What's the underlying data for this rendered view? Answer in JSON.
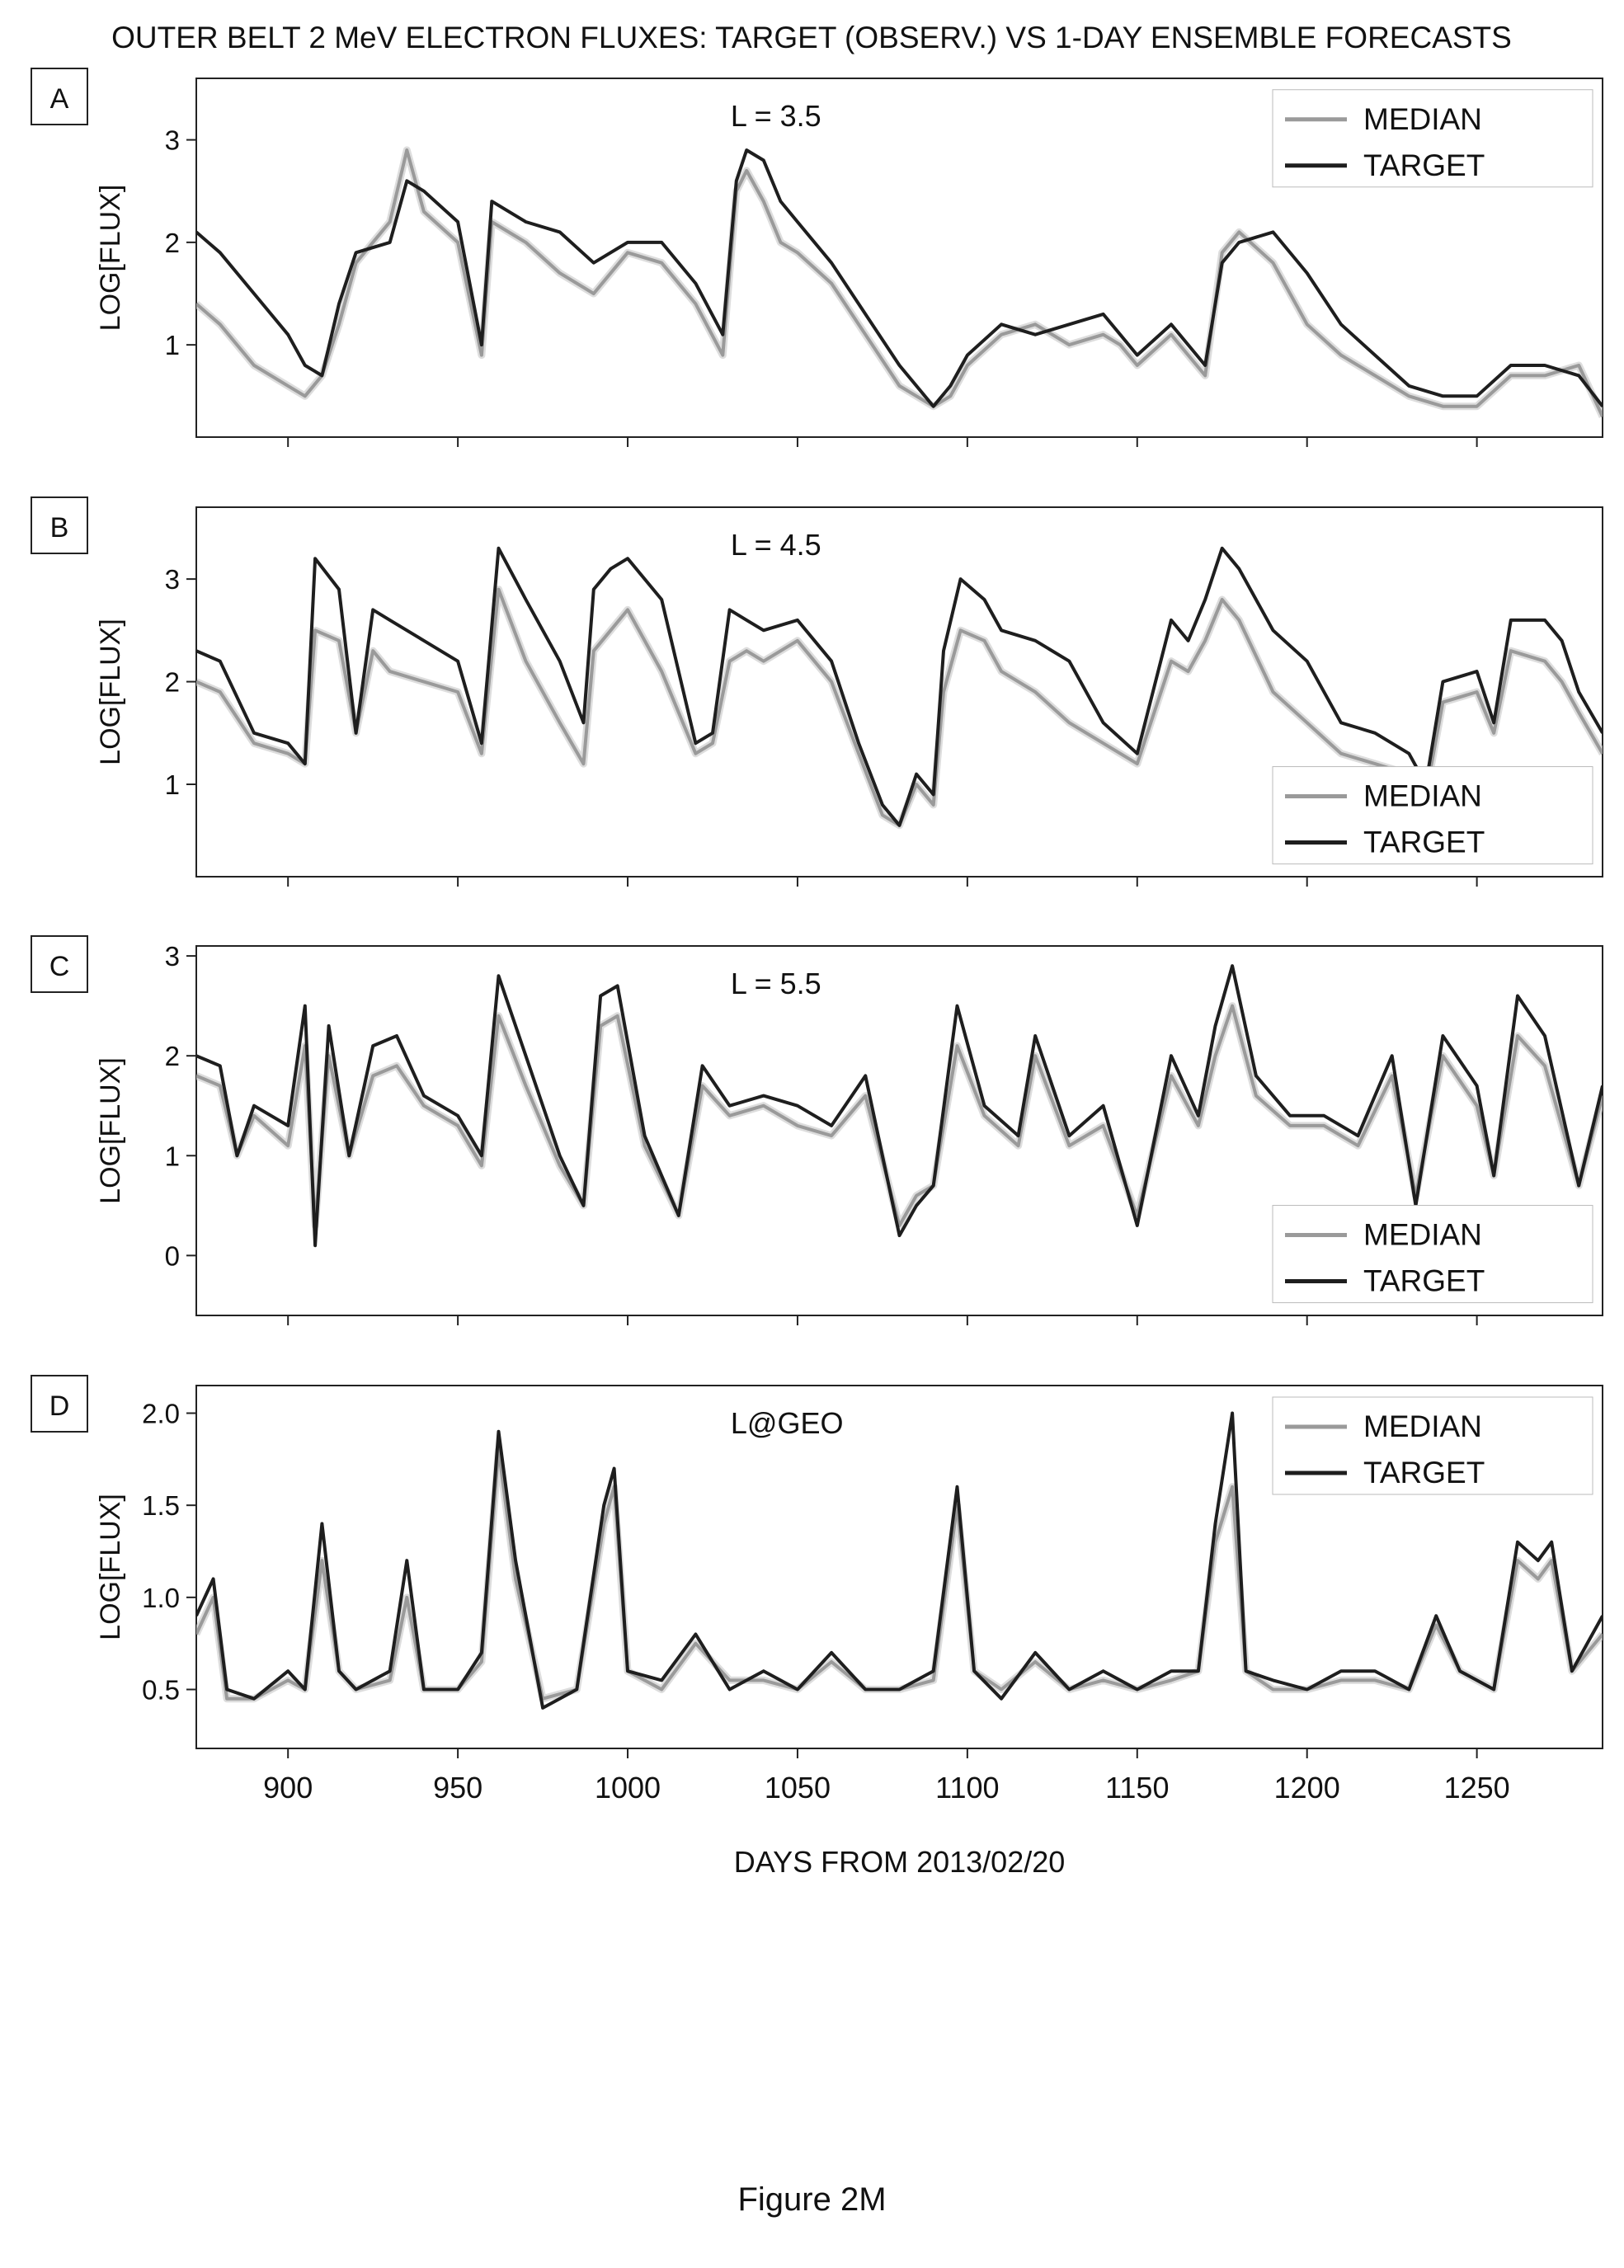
{
  "figure": {
    "title": "OUTER BELT 2 MeV ELECTRON FLUXES: TARGET (OBSERV.) VS 1-DAY ENSEMBLE FORECASTS",
    "caption": "Figure 2M",
    "colors": {
      "median": "#9a9a9a",
      "target": "#1e1e1e",
      "spread": "#cfcfcf",
      "axis": "#222222"
    }
  },
  "chart_data": [
    {
      "type": "line",
      "panel": "A",
      "annotation": "L = 3.5",
      "ylabel": "LOG[FLUX]",
      "xlabel": "",
      "xlim": [
        873,
        1287
      ],
      "ylim": [
        0.1,
        3.6
      ],
      "yticks": [
        1,
        2,
        3
      ],
      "ytick_labels": [
        "1",
        "2",
        "3"
      ],
      "xticks": [
        900,
        950,
        1000,
        1050,
        1100,
        1150,
        1200,
        1250
      ],
      "xtick_labels": [],
      "legend": {
        "position": "top-right",
        "entries": [
          "MEDIAN",
          "TARGET"
        ]
      },
      "x": [
        873,
        880,
        890,
        900,
        905,
        910,
        915,
        920,
        930,
        935,
        940,
        950,
        957,
        960,
        970,
        980,
        990,
        1000,
        1010,
        1020,
        1028,
        1032,
        1035,
        1040,
        1045,
        1050,
        1060,
        1070,
        1080,
        1090,
        1095,
        1100,
        1110,
        1120,
        1130,
        1140,
        1145,
        1150,
        1160,
        1165,
        1170,
        1175,
        1180,
        1190,
        1200,
        1210,
        1220,
        1230,
        1240,
        1250,
        1260,
        1270,
        1280,
        1287
      ],
      "series": [
        {
          "name": "TARGET",
          "values": [
            2.1,
            1.9,
            1.5,
            1.1,
            0.8,
            0.7,
            1.4,
            1.9,
            2.0,
            2.6,
            2.5,
            2.2,
            1.0,
            2.4,
            2.2,
            2.1,
            1.8,
            2.0,
            2.0,
            1.6,
            1.1,
            2.6,
            2.9,
            2.8,
            2.4,
            2.2,
            1.8,
            1.3,
            0.8,
            0.4,
            0.6,
            0.9,
            1.2,
            1.1,
            1.2,
            1.3,
            1.1,
            0.9,
            1.2,
            1.0,
            0.8,
            1.8,
            2.0,
            2.1,
            1.7,
            1.2,
            0.9,
            0.6,
            0.5,
            0.5,
            0.8,
            0.8,
            0.7,
            0.4
          ]
        },
        {
          "name": "MEDIAN",
          "values": [
            1.4,
            1.2,
            0.8,
            0.6,
            0.5,
            0.7,
            1.2,
            1.8,
            2.2,
            2.9,
            2.3,
            2.0,
            0.9,
            2.2,
            2.0,
            1.7,
            1.5,
            1.9,
            1.8,
            1.4,
            0.9,
            2.5,
            2.7,
            2.4,
            2.0,
            1.9,
            1.6,
            1.1,
            0.6,
            0.4,
            0.5,
            0.8,
            1.1,
            1.2,
            1.0,
            1.1,
            1.0,
            0.8,
            1.1,
            0.9,
            0.7,
            1.9,
            2.1,
            1.8,
            1.2,
            0.9,
            0.7,
            0.5,
            0.4,
            0.4,
            0.7,
            0.7,
            0.8,
            0.3
          ]
        }
      ]
    },
    {
      "type": "line",
      "panel": "B",
      "annotation": "L = 4.5",
      "ylabel": "LOG[FLUX]",
      "xlabel": "",
      "xlim": [
        873,
        1287
      ],
      "ylim": [
        0.1,
        3.7
      ],
      "yticks": [
        1,
        2,
        3
      ],
      "ytick_labels": [
        "1",
        "2",
        "3"
      ],
      "xticks": [
        900,
        950,
        1000,
        1050,
        1100,
        1150,
        1200,
        1250
      ],
      "xtick_labels": [],
      "legend": {
        "position": "bottom-right",
        "entries": [
          "MEDIAN",
          "TARGET"
        ]
      },
      "x": [
        873,
        880,
        890,
        900,
        905,
        908,
        915,
        920,
        925,
        930,
        940,
        950,
        957,
        962,
        970,
        980,
        987,
        990,
        995,
        1000,
        1010,
        1020,
        1025,
        1030,
        1035,
        1040,
        1050,
        1060,
        1068,
        1075,
        1080,
        1085,
        1090,
        1093,
        1098,
        1105,
        1110,
        1120,
        1130,
        1140,
        1150,
        1160,
        1165,
        1170,
        1175,
        1180,
        1190,
        1200,
        1210,
        1220,
        1230,
        1235,
        1240,
        1250,
        1255,
        1260,
        1270,
        1275,
        1280,
        1287
      ],
      "series": [
        {
          "name": "TARGET",
          "values": [
            2.3,
            2.2,
            1.5,
            1.4,
            1.2,
            3.2,
            2.9,
            1.5,
            2.7,
            2.6,
            2.4,
            2.2,
            1.4,
            3.3,
            2.8,
            2.2,
            1.6,
            2.9,
            3.1,
            3.2,
            2.8,
            1.4,
            1.5,
            2.7,
            2.6,
            2.5,
            2.6,
            2.2,
            1.4,
            0.8,
            0.6,
            1.1,
            0.9,
            2.3,
            3.0,
            2.8,
            2.5,
            2.4,
            2.2,
            1.6,
            1.3,
            2.6,
            2.4,
            2.8,
            3.3,
            3.1,
            2.5,
            2.2,
            1.6,
            1.5,
            1.3,
            1.0,
            2.0,
            2.1,
            1.6,
            2.6,
            2.6,
            2.4,
            1.9,
            1.5
          ]
        },
        {
          "name": "MEDIAN",
          "values": [
            2.0,
            1.9,
            1.4,
            1.3,
            1.2,
            2.5,
            2.4,
            1.5,
            2.3,
            2.1,
            2.0,
            1.9,
            1.3,
            2.9,
            2.2,
            1.6,
            1.2,
            2.3,
            2.5,
            2.7,
            2.1,
            1.3,
            1.4,
            2.2,
            2.3,
            2.2,
            2.4,
            2.0,
            1.3,
            0.7,
            0.6,
            1.0,
            0.8,
            1.9,
            2.5,
            2.4,
            2.1,
            1.9,
            1.6,
            1.4,
            1.2,
            2.2,
            2.1,
            2.4,
            2.8,
            2.6,
            1.9,
            1.6,
            1.3,
            1.2,
            1.1,
            0.9,
            1.8,
            1.9,
            1.5,
            2.3,
            2.2,
            2.0,
            1.7,
            1.3
          ]
        }
      ]
    },
    {
      "type": "line",
      "panel": "C",
      "annotation": "L = 5.5",
      "ylabel": "LOG[FLUX]",
      "xlabel": "",
      "xlim": [
        873,
        1287
      ],
      "ylim": [
        -0.6,
        3.1
      ],
      "yticks": [
        0,
        1,
        2,
        3
      ],
      "ytick_labels": [
        "0",
        "1",
        "2",
        "3"
      ],
      "xticks": [
        900,
        950,
        1000,
        1050,
        1100,
        1150,
        1200,
        1250
      ],
      "xtick_labels": [],
      "legend": {
        "position": "bottom-right",
        "entries": [
          "MEDIAN",
          "TARGET"
        ]
      },
      "x": [
        873,
        880,
        885,
        890,
        900,
        905,
        908,
        912,
        918,
        925,
        932,
        940,
        950,
        957,
        962,
        970,
        980,
        987,
        992,
        997,
        1005,
        1015,
        1022,
        1030,
        1040,
        1050,
        1060,
        1070,
        1080,
        1085,
        1090,
        1097,
        1105,
        1115,
        1120,
        1130,
        1140,
        1150,
        1160,
        1168,
        1173,
        1178,
        1185,
        1195,
        1205,
        1215,
        1225,
        1232,
        1240,
        1250,
        1255,
        1262,
        1270,
        1280,
        1287
      ],
      "series": [
        {
          "name": "TARGET",
          "values": [
            2.0,
            1.9,
            1.0,
            1.5,
            1.3,
            2.5,
            0.1,
            2.3,
            1.0,
            2.1,
            2.2,
            1.6,
            1.4,
            1.0,
            2.8,
            2.0,
            1.0,
            0.5,
            2.6,
            2.7,
            1.2,
            0.4,
            1.9,
            1.5,
            1.6,
            1.5,
            1.3,
            1.8,
            0.2,
            0.5,
            0.7,
            2.5,
            1.5,
            1.2,
            2.2,
            1.2,
            1.5,
            0.3,
            2.0,
            1.4,
            2.3,
            2.9,
            1.8,
            1.4,
            1.4,
            1.2,
            2.0,
            0.5,
            2.2,
            1.7,
            0.8,
            2.6,
            2.2,
            0.7,
            1.7
          ]
        },
        {
          "name": "MEDIAN",
          "values": [
            1.8,
            1.7,
            1.0,
            1.4,
            1.1,
            2.1,
            0.3,
            2.0,
            1.0,
            1.8,
            1.9,
            1.5,
            1.3,
            0.9,
            2.4,
            1.7,
            0.9,
            0.5,
            2.3,
            2.4,
            1.1,
            0.4,
            1.7,
            1.4,
            1.5,
            1.3,
            1.2,
            1.6,
            0.3,
            0.6,
            0.7,
            2.1,
            1.4,
            1.1,
            2.0,
            1.1,
            1.3,
            0.4,
            1.8,
            1.3,
            2.0,
            2.5,
            1.6,
            1.3,
            1.3,
            1.1,
            1.8,
            0.6,
            2.0,
            1.5,
            0.8,
            2.2,
            1.9,
            0.7,
            1.6
          ]
        }
      ]
    },
    {
      "type": "line",
      "panel": "D",
      "annotation": "L@GEO",
      "ylabel": "LOG[FLUX]",
      "xlabel": "DAYS FROM 2013/02/20",
      "xlim": [
        873,
        1287
      ],
      "ylim": [
        0.18,
        2.15
      ],
      "yticks": [
        0.5,
        1.0,
        1.5,
        2.0
      ],
      "ytick_labels": [
        "0.5",
        "1.0",
        "1.5",
        "2.0"
      ],
      "xticks": [
        900,
        950,
        1000,
        1050,
        1100,
        1150,
        1200,
        1250
      ],
      "xtick_labels": [
        "900",
        "950",
        "1000",
        "1050",
        "1100",
        "1150",
        "1200",
        "1250"
      ],
      "legend": {
        "position": "top-right",
        "entries": [
          "MEDIAN",
          "TARGET"
        ]
      },
      "x": [
        873,
        878,
        882,
        890,
        900,
        905,
        910,
        915,
        920,
        930,
        935,
        940,
        950,
        957,
        962,
        967,
        975,
        985,
        993,
        996,
        1000,
        1010,
        1020,
        1030,
        1040,
        1050,
        1060,
        1070,
        1080,
        1090,
        1097,
        1102,
        1110,
        1120,
        1130,
        1140,
        1150,
        1160,
        1168,
        1173,
        1178,
        1182,
        1190,
        1200,
        1210,
        1220,
        1230,
        1238,
        1245,
        1255,
        1262,
        1268,
        1272,
        1278,
        1287
      ],
      "series": [
        {
          "name": "TARGET",
          "values": [
            0.9,
            1.1,
            0.5,
            0.45,
            0.6,
            0.5,
            1.4,
            0.6,
            0.5,
            0.6,
            1.2,
            0.5,
            0.5,
            0.7,
            1.9,
            1.2,
            0.4,
            0.5,
            1.5,
            1.7,
            0.6,
            0.55,
            0.8,
            0.5,
            0.6,
            0.5,
            0.7,
            0.5,
            0.5,
            0.6,
            1.6,
            0.6,
            0.45,
            0.7,
            0.5,
            0.6,
            0.5,
            0.6,
            0.6,
            1.4,
            2.0,
            0.6,
            0.55,
            0.5,
            0.6,
            0.6,
            0.5,
            0.9,
            0.6,
            0.5,
            1.3,
            1.2,
            1.3,
            0.6,
            0.9
          ]
        },
        {
          "name": "MEDIAN",
          "values": [
            0.8,
            1.0,
            0.45,
            0.45,
            0.55,
            0.5,
            1.2,
            0.6,
            0.5,
            0.55,
            1.0,
            0.5,
            0.5,
            0.65,
            1.8,
            1.1,
            0.45,
            0.5,
            1.4,
            1.6,
            0.6,
            0.5,
            0.75,
            0.55,
            0.55,
            0.5,
            0.65,
            0.5,
            0.5,
            0.55,
            1.5,
            0.6,
            0.5,
            0.65,
            0.5,
            0.55,
            0.5,
            0.55,
            0.6,
            1.3,
            1.6,
            0.6,
            0.5,
            0.5,
            0.55,
            0.55,
            0.5,
            0.85,
            0.6,
            0.5,
            1.2,
            1.1,
            1.2,
            0.6,
            0.8
          ]
        }
      ]
    }
  ]
}
